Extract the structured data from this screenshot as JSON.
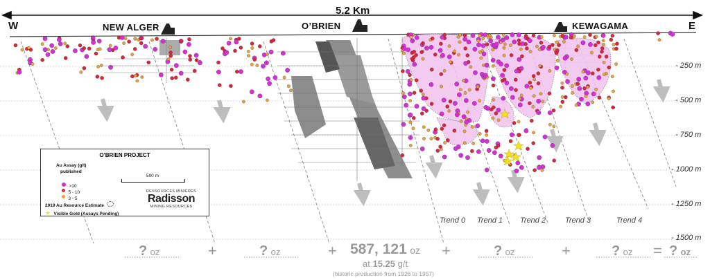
{
  "header": {
    "distance": "5.2 Km",
    "west": "W",
    "east": "E"
  },
  "mines": [
    {
      "label": "NEW ALGER"
    },
    {
      "label": "O’BRIEN"
    },
    {
      "label": "KEWAGAMA"
    }
  ],
  "depths": [
    "- 250 m",
    "- 500 m",
    "- 750 m",
    "- 1000 m",
    "- 1250 m",
    "- 1500 m"
  ],
  "trends": [
    "Trend 0",
    "Trend 1",
    "Trend 2",
    "Trend 3",
    "Trend 4"
  ],
  "legend": {
    "title": "O’BRIEN PROJECT",
    "assay_title_1": "Au Assay (g/t)",
    "assay_title_2": "published",
    "scale": "500 m",
    "classes": [
      {
        "label": ">10",
        "color": "#d62fd6"
      },
      {
        "label": "5 - 10",
        "color": "#d9263a"
      },
      {
        "label": "3 - 5",
        "color": "#e8a23a"
      }
    ],
    "resource": "2019 Au Resource Estimate",
    "visible_gold": "Visible Gold (Assays Pending)",
    "logo_top": "RESSOURCES MINIÈRES",
    "logo_name": "Radisson",
    "logo_bottom": "MINING RESOURCES"
  },
  "bottom": {
    "q1": "?",
    "u1": "oz",
    "plus1": "+",
    "q2": "?",
    "u2": "oz",
    "plus2": "+",
    "main_value": "587, 121",
    "main_unit": "oz",
    "grade_prefix": "at",
    "grade_value": "15.25",
    "grade_unit": "g/t",
    "note": "(historic production from 1926 to 1957)",
    "plus3": "+",
    "q3": "?",
    "u3": "oz",
    "plus4": "+",
    "q4": "?",
    "u4": "oz",
    "equals": "=",
    "q5": "?",
    "u5": "oz"
  },
  "colors": {
    "high": "#d62fd6",
    "mid": "#d9263a",
    "low": "#e8a23a",
    "gold": "#f2e21c",
    "arrow": "#bdbdbd"
  }
}
